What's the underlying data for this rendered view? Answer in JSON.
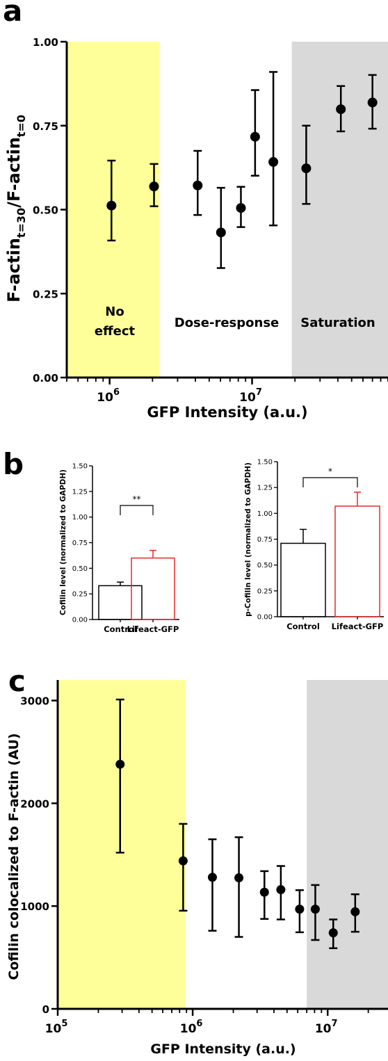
{
  "colors": {
    "no_effect_band": "#ffff99",
    "saturation_band": "#d9d9d9",
    "marker": "#000000",
    "control_bar": "#000000",
    "lifeact_bar": "#e8282b"
  },
  "chart_data": [
    {
      "panel": "a",
      "type": "scatter",
      "xlabel": "GFP Intensity (a.u.)",
      "ylabel_main": "F-actin",
      "ylabel_sub1": "t=30",
      "ylabel_mid": "/F-actin",
      "ylabel_sub2": "t=0",
      "x_scale": "log",
      "xlim": [
        500000,
        90000000
      ],
      "ylim": [
        0,
        1
      ],
      "yticks": [
        "0.00",
        "0.25",
        "0.50",
        "0.75",
        "1.00"
      ],
      "xtick_labels": [
        {
          "base": "10",
          "exp": "6",
          "value": 1000000
        },
        {
          "base": "10",
          "exp": "7",
          "value": 10000000
        }
      ],
      "regions": [
        {
          "label_line1": "No",
          "label_line2": "effect",
          "x0": 500000,
          "x1": 2250000,
          "color": "yellow"
        },
        {
          "label_line1": "Dose-response",
          "label_line2": "",
          "x0": 2250000,
          "x1": 19000000,
          "color": "none"
        },
        {
          "label_line1": "Saturation",
          "label_line2": "",
          "x0": 19000000,
          "x1": 90000000,
          "color": "gray"
        }
      ],
      "points": [
        {
          "x": 1030000,
          "y": 0.512,
          "low": 0.408,
          "high": 0.646
        },
        {
          "x": 2050000,
          "y": 0.569,
          "low": 0.51,
          "high": 0.636
        },
        {
          "x": 4150000,
          "y": 0.572,
          "low": 0.484,
          "high": 0.675
        },
        {
          "x": 6050000,
          "y": 0.432,
          "low": 0.326,
          "high": 0.565
        },
        {
          "x": 8350000,
          "y": 0.505,
          "low": 0.448,
          "high": 0.568
        },
        {
          "x": 10500000,
          "y": 0.717,
          "low": 0.601,
          "high": 0.856
        },
        {
          "x": 14100000,
          "y": 0.642,
          "low": 0.453,
          "high": 0.91
        },
        {
          "x": 24000000,
          "y": 0.623,
          "low": 0.517,
          "high": 0.75
        },
        {
          "x": 42000000,
          "y": 0.799,
          "low": 0.733,
          "high": 0.868
        },
        {
          "x": 70000000,
          "y": 0.819,
          "low": 0.741,
          "high": 0.901
        }
      ]
    },
    {
      "panel": "b-left",
      "type": "bar",
      "categories": [
        "Control",
        "Lifeact-GFP"
      ],
      "values": [
        0.33,
        0.6
      ],
      "errors": [
        0.035,
        0.075
      ],
      "ylabel": "Cofilin level (normalized to GAPDH)",
      "ylim": [
        0,
        1.5
      ],
      "yticks": [
        "0.00",
        "0.25",
        "0.50",
        "0.75",
        "1.00",
        "1.25",
        "1.50"
      ],
      "significance": "**"
    },
    {
      "panel": "b-right",
      "type": "bar",
      "categories": [
        "Control",
        "Lifeact-GFP"
      ],
      "values": [
        0.71,
        1.07
      ],
      "errors": [
        0.135,
        0.135
      ],
      "ylabel": "p-Cofilin level (normalized to GAPDH)",
      "ylim": [
        0,
        1.5
      ],
      "yticks": [
        "0.00",
        "0.25",
        "0.50",
        "0.75",
        "1.00",
        "1.25",
        "1.50"
      ],
      "significance": "*"
    },
    {
      "panel": "c",
      "type": "scatter",
      "xlabel": "GFP Intensity (a.u.)",
      "ylabel": "Cofilin colocalized to F-actin (AU)",
      "x_scale": "log",
      "xlim": [
        100000,
        28000000
      ],
      "ylim": [
        0,
        3200
      ],
      "yticks": [
        "0",
        "1000",
        "2000",
        "3000"
      ],
      "xtick_labels": [
        {
          "base": "10",
          "exp": "5",
          "value": 100000
        },
        {
          "base": "10",
          "exp": "6",
          "value": 1000000
        },
        {
          "base": "10",
          "exp": "7",
          "value": 10000000
        }
      ],
      "regions": [
        {
          "x0": 100000,
          "x1": 880000,
          "color": "yellow"
        },
        {
          "x0": 7000000,
          "x1": 28000000,
          "color": "gray"
        }
      ],
      "points": [
        {
          "x": 290000,
          "y": 2380,
          "low": 1520,
          "high": 3010
        },
        {
          "x": 850000,
          "y": 1440,
          "low": 955,
          "high": 1800
        },
        {
          "x": 1400000,
          "y": 1280,
          "low": 760,
          "high": 1650
        },
        {
          "x": 2200000,
          "y": 1275,
          "low": 700,
          "high": 1670
        },
        {
          "x": 3400000,
          "y": 1135,
          "low": 875,
          "high": 1340
        },
        {
          "x": 4500000,
          "y": 1160,
          "low": 870,
          "high": 1390
        },
        {
          "x": 6200000,
          "y": 970,
          "low": 745,
          "high": 1155
        },
        {
          "x": 8100000,
          "y": 970,
          "low": 670,
          "high": 1205
        },
        {
          "x": 11000000,
          "y": 740,
          "low": 590,
          "high": 870
        },
        {
          "x": 16000000,
          "y": 945,
          "low": 750,
          "high": 1115
        }
      ]
    }
  ],
  "panel_labels": {
    "a": "a",
    "b": "b",
    "c": "c"
  }
}
